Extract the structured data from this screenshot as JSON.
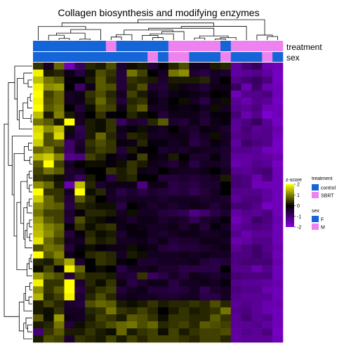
{
  "chart_data": {
    "type": "heatmap",
    "title": "Collagen biosynthesis and modifying enzymes",
    "annotation_tracks": [
      {
        "name": "treatment",
        "values": [
          "control",
          "control",
          "control",
          "control",
          "control",
          "control",
          "control",
          "SBRT",
          "control",
          "control",
          "control",
          "control",
          "control",
          "SBRT",
          "SBRT",
          "SBRT",
          "SBRT",
          "SBRT",
          "control",
          "SBRT",
          "SBRT",
          "SBRT",
          "SBRT",
          "SBRT"
        ]
      },
      {
        "name": "sex",
        "values": [
          "F",
          "F",
          "F",
          "F",
          "F",
          "F",
          "F",
          "F",
          "F",
          "F",
          "F",
          "M",
          "F",
          "M",
          "M",
          "F",
          "F",
          "F",
          "M",
          "F",
          "F",
          "F",
          "M",
          "F"
        ]
      }
    ],
    "legend": {
      "scale_title": "z-score",
      "scale_ticks": [
        2,
        1,
        0,
        -1,
        -2
      ],
      "scale_colors": {
        "low": "#8a00e6",
        "mid": "#000000",
        "high": "#ffff00"
      },
      "groups": [
        {
          "title": "treatment",
          "items": [
            {
              "label": "control",
              "color": "#1565d8"
            },
            {
              "label": "SBRT",
              "color": "#ee82ee"
            }
          ]
        },
        {
          "title": "sex",
          "items": [
            {
              "label": "F",
              "color": "#1565d8"
            },
            {
              "label": "M",
              "color": "#ee82ee"
            }
          ]
        }
      ]
    },
    "value_range": [
      -2,
      2
    ],
    "rows": 40,
    "columns": 24,
    "values": [
      [
        0.4,
        -0.3,
        0.8,
        -1.6,
        -0.8,
        0.3,
        0.2,
        0.6,
        -0.4,
        0.1,
        0.2,
        -0.5,
        -0.1,
        0.3,
        0.6,
        -0.3,
        -0.3,
        0.2,
        0.3,
        -1.4,
        -1.0,
        -0.8,
        -1.5,
        -1.6
      ],
      [
        1.9,
        0.2,
        0.3,
        -0.2,
        -0.6,
        0.1,
        0.6,
        0.4,
        -0.5,
        0.9,
        0.5,
        0.0,
        -0.3,
        0.9,
        1.1,
        -0.4,
        -0.6,
        -0.3,
        -0.4,
        -1.4,
        -1.3,
        -1.2,
        -1.4,
        -1.7
      ],
      [
        1.5,
        0.9,
        0.7,
        -0.1,
        0.0,
        0.2,
        0.7,
        0.3,
        -0.5,
        0.4,
        0.3,
        0.2,
        -0.4,
        0.2,
        0.2,
        0.2,
        0.3,
        -0.3,
        0.0,
        -1.2,
        -1.0,
        -0.8,
        -1.1,
        -1.7
      ],
      [
        1.9,
        1.1,
        1.2,
        0.0,
        -0.9,
        -0.2,
        0.7,
        0.6,
        -0.5,
        0.3,
        0.6,
        -0.4,
        -0.5,
        0.1,
        -0.2,
        -0.3,
        -0.5,
        -0.2,
        -0.2,
        -0.8,
        -1.5,
        -0.9,
        -1.5,
        -1.6
      ],
      [
        2.0,
        0.5,
        0.8,
        -0.3,
        -0.2,
        0.4,
        0.6,
        0.3,
        -0.3,
        0.5,
        0.2,
        -0.2,
        -0.4,
        -0.2,
        -0.1,
        -0.2,
        -0.3,
        0.0,
        -0.1,
        -1.6,
        -1.2,
        -1.2,
        -1.1,
        -1.6
      ],
      [
        1.9,
        0.6,
        0.8,
        -0.3,
        -0.2,
        0.3,
        0.8,
        0.4,
        -0.5,
        0.3,
        0.4,
        -0.1,
        -0.3,
        0.0,
        0.1,
        -0.3,
        -0.6,
        -0.2,
        0.1,
        -1.3,
        -1.5,
        -1.2,
        -1.3,
        -1.7
      ],
      [
        2.0,
        0.7,
        0.9,
        0.0,
        -0.5,
        0.1,
        0.6,
        0.5,
        -0.2,
        0.4,
        0.7,
        -0.3,
        -0.3,
        -0.1,
        -0.2,
        -0.1,
        -0.3,
        0.1,
        -0.3,
        -1.2,
        -1.3,
        -1.1,
        -1.6,
        -1.6
      ],
      [
        1.5,
        0.2,
        1.0,
        0.2,
        -0.3,
        0.0,
        0.4,
        -0.1,
        0.0,
        0.3,
        0.1,
        0.0,
        -0.5,
        -0.2,
        -0.2,
        -0.2,
        -0.4,
        -0.1,
        -0.1,
        -1.0,
        -1.5,
        -1.2,
        -1.8,
        -1.6
      ],
      [
        0.9,
        0.7,
        0.2,
        2.0,
        -0.3,
        0.2,
        0.1,
        0.4,
        -0.8,
        -0.4,
        -0.5,
        0.3,
        0.7,
        -0.4,
        -0.5,
        -0.2,
        -0.5,
        -0.2,
        -0.1,
        -1.3,
        -1.1,
        -0.8,
        -1.3,
        -1.7
      ],
      [
        1.7,
        1.1,
        1.5,
        0.1,
        -0.7,
        0.2,
        0.1,
        0.4,
        -0.2,
        -0.1,
        0.1,
        -0.2,
        -0.3,
        0.0,
        -0.3,
        -0.4,
        -0.1,
        -0.2,
        -0.4,
        -1.3,
        -1.0,
        -1.3,
        -1.2,
        -1.5
      ],
      [
        1.8,
        0.6,
        1.7,
        -0.3,
        -0.6,
        0.2,
        0.8,
        0.3,
        -0.3,
        0.3,
        0.2,
        -0.3,
        -0.3,
        -0.2,
        -0.2,
        -0.5,
        -0.3,
        0.1,
        -0.3,
        -1.2,
        -1.1,
        -1.2,
        -1.2,
        -1.6
      ],
      [
        1.6,
        0.6,
        0.7,
        -0.9,
        -0.4,
        0.4,
        0.6,
        0.4,
        -0.1,
        -0.2,
        0.3,
        -0.1,
        -0.1,
        -0.3,
        -0.2,
        -0.6,
        -0.4,
        -0.1,
        -0.3,
        -1.4,
        -0.9,
        -1.1,
        -1.2,
        -1.7
      ],
      [
        0.8,
        1.0,
        0.4,
        -0.9,
        -0.3,
        0.3,
        0.5,
        0.4,
        -0.5,
        0.2,
        -0.1,
        0.0,
        -0.4,
        -0.3,
        -0.4,
        -0.2,
        -0.3,
        -0.3,
        -0.4,
        -1.2,
        -1.2,
        -1.3,
        -1.6,
        -1.7
      ],
      [
        1.4,
        1.6,
        1.0,
        -1.2,
        -1.1,
        0.5,
        0.3,
        -0.1,
        -0.3,
        -0.1,
        0.5,
        -0.1,
        -0.2,
        0.2,
        0.0,
        -0.4,
        -0.4,
        -0.1,
        -0.4,
        -1.4,
        -1.4,
        -1.3,
        -1.4,
        -1.5
      ],
      [
        0.7,
        2.0,
        0.5,
        -0.3,
        0.0,
        0.1,
        0.1,
        -0.1,
        0.1,
        0.4,
        0.2,
        -0.2,
        -0.3,
        -0.5,
        -0.2,
        -0.6,
        -0.3,
        -0.3,
        -0.4,
        -1.5,
        -1.4,
        -1.2,
        -1.3,
        -1.7
      ],
      [
        0.5,
        0.9,
        0.7,
        -0.4,
        -0.3,
        0.0,
        0.0,
        0.4,
        0.2,
        0.4,
        -0.2,
        -0.3,
        0.0,
        -0.2,
        -0.3,
        -0.3,
        -0.2,
        0.0,
        -0.3,
        -1.2,
        -1.3,
        -1.1,
        -1.0,
        -1.6
      ],
      [
        0.4,
        0.3,
        0.1,
        -0.4,
        -0.8,
        0.2,
        0.0,
        -0.6,
        0.2,
        0.3,
        0.0,
        0.0,
        -0.5,
        -0.5,
        -0.4,
        -0.5,
        -0.4,
        -0.3,
        0.2,
        -1.0,
        -1.1,
        -1.5,
        -1.1,
        -1.6
      ],
      [
        1.1,
        0.8,
        0.2,
        -1.5,
        1.5,
        0.3,
        -0.4,
        -0.2,
        -0.2,
        -0.2,
        -1.1,
        -0.2,
        -0.2,
        -0.6,
        -0.5,
        -0.6,
        -0.4,
        -0.4,
        0.0,
        -1.0,
        -1.1,
        -1.6,
        -1.6,
        -1.6
      ],
      [
        2.0,
        0.4,
        0.4,
        -0.3,
        2.0,
        0.1,
        0.3,
        -0.3,
        -0.6,
        -0.4,
        -0.6,
        -0.4,
        -0.5,
        -0.6,
        -0.5,
        -0.7,
        -0.5,
        -0.3,
        0.0,
        -1.2,
        -1.2,
        -1.2,
        -1.4,
        -1.6
      ],
      [
        1.6,
        0.8,
        0.4,
        -0.5,
        0.7,
        0.3,
        0.0,
        -0.3,
        -0.4,
        -0.3,
        -0.3,
        -0.3,
        -0.4,
        -0.3,
        -0.3,
        -0.3,
        -0.4,
        -0.3,
        -0.4,
        -1.3,
        -1.1,
        -1.1,
        -1.4,
        -1.6
      ],
      [
        1.1,
        0.8,
        0.7,
        -0.6,
        0.3,
        0.2,
        0.1,
        0.1,
        -0.6,
        0.0,
        -0.2,
        -0.4,
        -0.3,
        -0.4,
        -0.3,
        -0.2,
        -0.3,
        -0.5,
        -0.3,
        -1.0,
        -1.0,
        -1.2,
        -1.7,
        -1.6
      ],
      [
        0.9,
        0.5,
        0.5,
        -0.4,
        -0.1,
        0.3,
        0.3,
        0.2,
        -0.3,
        0.1,
        -0.3,
        -0.3,
        -0.5,
        -0.6,
        -0.7,
        -1.1,
        -0.9,
        -0.6,
        -0.4,
        -1.4,
        -1.2,
        -1.3,
        -1.1,
        -1.6
      ],
      [
        1.2,
        0.7,
        0.5,
        -0.5,
        0.6,
        0.2,
        0.1,
        -0.1,
        -0.2,
        -0.4,
        -0.2,
        -0.2,
        -0.4,
        -0.3,
        -0.4,
        -0.7,
        -0.4,
        -0.3,
        -0.1,
        -1.6,
        -1.3,
        -0.9,
        -1.1,
        -1.5
      ],
      [
        1.4,
        1.0,
        0.8,
        -0.1,
        0.4,
        0.1,
        0.3,
        0.4,
        -0.2,
        -0.1,
        -0.2,
        -0.3,
        -0.3,
        -0.2,
        -0.4,
        -0.2,
        -0.5,
        -0.1,
        -0.3,
        -1.4,
        -1.2,
        -1.1,
        -1.2,
        -1.6
      ],
      [
        1.5,
        1.1,
        0.7,
        -0.5,
        -0.1,
        0.3,
        0.1,
        0.2,
        -0.4,
        -0.1,
        -0.1,
        -0.3,
        -0.4,
        -0.3,
        -0.2,
        -0.2,
        -0.3,
        -0.3,
        -0.2,
        -1.2,
        -1.5,
        -1.3,
        -1.3,
        -1.6
      ],
      [
        1.8,
        0.8,
        0.5,
        -0.3,
        -0.3,
        0.4,
        0.2,
        0.3,
        -0.3,
        -0.3,
        -0.2,
        -0.4,
        -0.2,
        -0.5,
        -0.4,
        -0.4,
        -0.2,
        -0.2,
        -0.3,
        -1.5,
        -1.4,
        -1.2,
        -1.2,
        -1.6
      ],
      [
        0.6,
        0.9,
        0.8,
        -0.5,
        -0.1,
        0.1,
        -0.1,
        -0.2,
        -0.2,
        0.1,
        -0.1,
        -0.2,
        -0.5,
        -0.6,
        -0.5,
        -0.5,
        -0.4,
        -0.3,
        -0.2,
        -1.3,
        -1.1,
        -0.9,
        -1.2,
        -1.5
      ],
      [
        2.0,
        0.7,
        1.0,
        -0.2,
        0.0,
        0.3,
        0.4,
        0.3,
        -0.3,
        0.2,
        0.1,
        -0.3,
        -0.3,
        -0.3,
        -0.2,
        -0.3,
        -0.2,
        -0.3,
        -0.3,
        -1.1,
        -1.1,
        -0.9,
        -1.1,
        -1.6
      ],
      [
        0.3,
        0.2,
        0.7,
        1.3,
        -0.4,
        0.0,
        0.4,
        0.3,
        -0.1,
        0.0,
        -0.4,
        -0.4,
        -0.3,
        -0.3,
        -0.3,
        -0.2,
        -0.5,
        -0.6,
        -0.5,
        -1.1,
        -1.0,
        -1.0,
        -1.0,
        -1.5
      ],
      [
        0.1,
        0.5,
        -0.1,
        1.9,
        0.8,
        0.0,
        0.1,
        0.0,
        -0.6,
        -0.3,
        -0.3,
        -0.2,
        -0.4,
        -0.4,
        -0.6,
        -0.6,
        -0.6,
        -0.6,
        0.0,
        -1.2,
        -1.2,
        -1.5,
        -1.2,
        -1.6
      ],
      [
        1.2,
        0.8,
        0.6,
        -0.5,
        0.5,
        0.3,
        0.3,
        0.2,
        -0.4,
        -0.5,
        0.4,
        -0.8,
        -0.6,
        -0.3,
        -0.5,
        -0.2,
        -0.3,
        -0.4,
        -0.3,
        -1.0,
        -1.1,
        -1.1,
        -1.1,
        -1.6
      ],
      [
        1.9,
        0.4,
        0.4,
        2.0,
        -0.4,
        0.3,
        0.1,
        0.4,
        -0.2,
        -0.6,
        -0.4,
        -0.2,
        -0.2,
        -0.6,
        -0.3,
        -0.3,
        -0.2,
        -0.3,
        -0.1,
        -1.2,
        -1.3,
        -1.3,
        -1.4,
        -1.5
      ],
      [
        1.1,
        0.4,
        0.7,
        2.0,
        -0.6,
        0.2,
        0.4,
        0.5,
        -0.5,
        -0.3,
        -0.2,
        -0.5,
        -0.5,
        -0.6,
        -0.5,
        -0.3,
        -0.7,
        -0.4,
        -0.3,
        -1.1,
        -1.2,
        -1.2,
        -1.5,
        -1.6
      ],
      [
        1.4,
        0.3,
        0.5,
        1.9,
        -0.4,
        0.3,
        0.6,
        0.3,
        -0.3,
        -0.2,
        -0.3,
        -0.3,
        -0.4,
        -0.4,
        -0.3,
        -0.3,
        -0.6,
        -0.6,
        -0.3,
        -1.2,
        -1.3,
        -1.3,
        -1.3,
        -1.6
      ],
      [
        0.2,
        0.5,
        0.3,
        -0.4,
        -0.5,
        0.6,
        0.8,
        0.7,
        0.2,
        0.1,
        0.2,
        0.4,
        0.2,
        0.3,
        0.3,
        0.4,
        0.3,
        0.6,
        0.3,
        -1.3,
        -1.2,
        -1.3,
        -1.5,
        -1.5
      ],
      [
        0.2,
        0.1,
        0.4,
        -0.3,
        -0.3,
        0.3,
        0.4,
        0.9,
        0.4,
        0.3,
        0.5,
        0.3,
        0.0,
        0.2,
        0.4,
        0.2,
        0.3,
        0.4,
        0.9,
        -1.2,
        -1.1,
        -1.3,
        -1.5,
        -1.6
      ],
      [
        0.7,
        0.1,
        1.2,
        -0.2,
        -0.3,
        0.2,
        0.5,
        0.4,
        0.2,
        0.7,
        0.6,
        0.4,
        0.1,
        0.4,
        0.4,
        0.3,
        0.3,
        0.7,
        0.4,
        -1.3,
        -1.0,
        -1.3,
        -1.2,
        -1.6
      ],
      [
        0.2,
        0.3,
        0.9,
        -0.5,
        0.1,
        0.3,
        0.4,
        0.6,
        0.8,
        0.9,
        0.6,
        0.8,
        0.3,
        0.4,
        0.5,
        0.3,
        0.7,
        0.6,
        0.5,
        -1.3,
        -1.3,
        -1.2,
        -1.4,
        -1.6
      ],
      [
        -1.0,
        0.4,
        0.7,
        0.2,
        0.2,
        0.4,
        0.2,
        0.1,
        0.8,
        0.2,
        0.4,
        0.5,
        0.1,
        0.5,
        0.2,
        0.4,
        0.5,
        0.5,
        0.6,
        -1.4,
        -1.2,
        -1.3,
        -1.1,
        -1.7
      ],
      [
        0.2,
        0.6,
        0.5,
        -0.4,
        0.4,
        0.3,
        0.2,
        0.5,
        0.2,
        0.5,
        0.3,
        0.5,
        0.5,
        0.5,
        0.4,
        0.3,
        0.5,
        0.5,
        0.3,
        -1.4,
        -1.3,
        -1.3,
        -1.3,
        -1.6
      ]
    ]
  }
}
